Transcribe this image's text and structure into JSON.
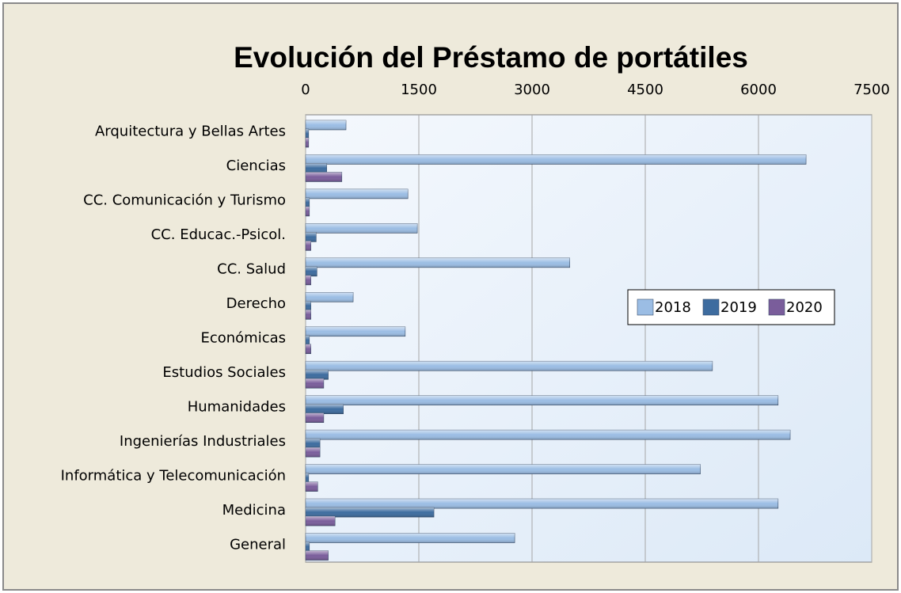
{
  "chart_data": {
    "type": "hbar",
    "title": "Evolución del Préstamo de portátiles",
    "categories": [
      "Arquitectura y Bellas Artes",
      "Ciencias",
      "CC. Comunicación y Turismo",
      "CC. Educac.-Psicol.",
      "CC. Salud",
      "Derecho",
      "Económicas",
      "Estudios Sociales",
      "Humanidades",
      "Ingenierías Industriales",
      "Informática y Telecomunicación",
      "Medicina",
      "General"
    ],
    "series": [
      {
        "name": "2018",
        "color": "#9bbde4",
        "values": [
          535,
          6630,
          1355,
          1480,
          3500,
          630,
          1320,
          5390,
          6260,
          6420,
          5230,
          6260,
          2770
        ]
      },
      {
        "name": "2019",
        "color": "#3d6c9f",
        "values": [
          40,
          280,
          50,
          140,
          150,
          70,
          50,
          300,
          500,
          190,
          40,
          1700,
          50
        ]
      },
      {
        "name": "2020",
        "color": "#7a5d9b",
        "values": [
          40,
          480,
          50,
          70,
          70,
          70,
          70,
          240,
          240,
          190,
          160,
          390,
          300
        ]
      }
    ],
    "xlim": [
      0,
      7500
    ],
    "xticks": [
      0,
      1500,
      3000,
      4500,
      6000,
      7500
    ],
    "grid": true,
    "legend": "right"
  }
}
